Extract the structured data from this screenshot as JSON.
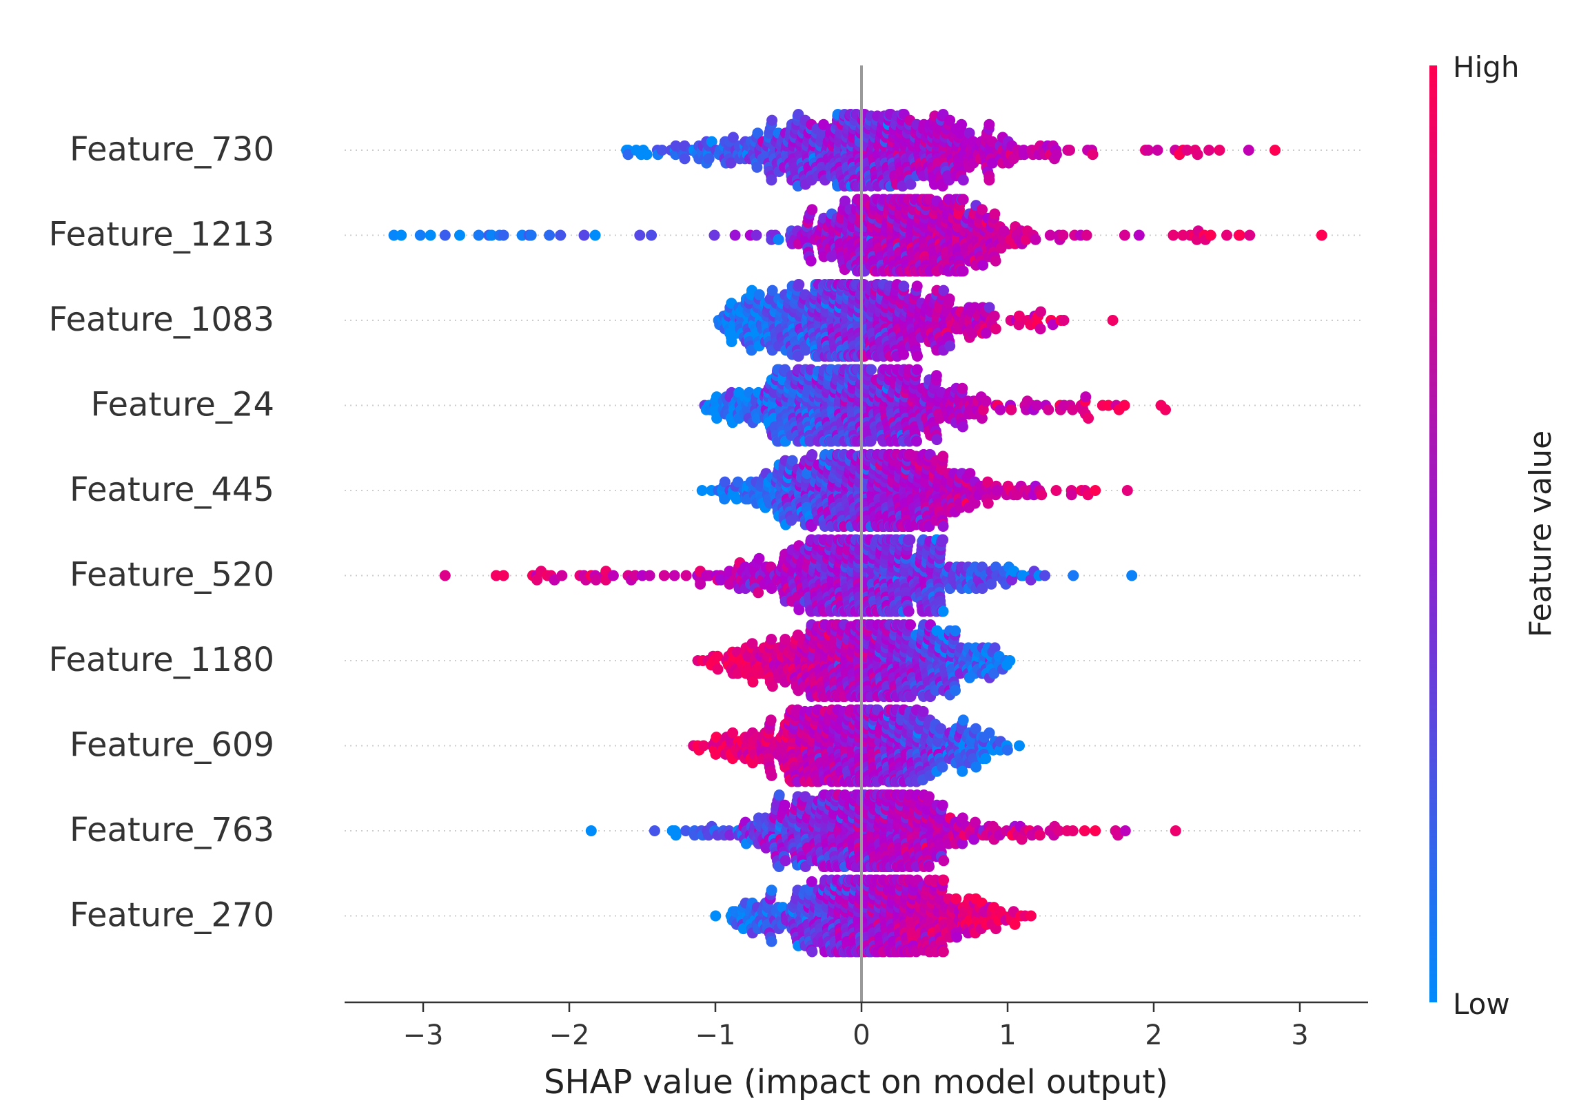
{
  "chart_data": {
    "type": "scatter",
    "subtype": "shap-beeswarm",
    "xlabel": "SHAP value (impact on model output)",
    "xlim": [
      -3.55,
      3.45
    ],
    "xticks": [
      -3,
      -2,
      -1,
      0,
      1,
      2,
      3
    ],
    "xtick_labels": [
      "−3",
      "−2",
      "−1",
      "0",
      "1",
      "2",
      "3"
    ],
    "colorbar": {
      "label": "Feature value",
      "high_label": "High",
      "low_label": "Low",
      "low_color": "#008bfb",
      "high_color": "#ff0052"
    },
    "features": [
      {
        "name": "Feature_730",
        "min": -1.8,
        "max": 2.85,
        "core_low": -0.9,
        "core_high": 0.65,
        "center": 0.05,
        "spread": 0.55,
        "direction": 1,
        "outliers": [
          2.2,
          2.3,
          2.45,
          2.65,
          2.83
        ]
      },
      {
        "name": "Feature_1213",
        "min": -3.2,
        "max": 3.15,
        "core_low": -0.3,
        "core_high": 0.8,
        "center": 0.3,
        "spread": 0.35,
        "direction": 1,
        "outliers": [
          -3.2,
          -3.15,
          -3.02,
          -2.95,
          -2.85,
          -2.75,
          -2.62,
          -2.55,
          -2.45,
          1.5,
          1.9,
          2.2,
          2.25,
          2.5,
          3.15
        ]
      },
      {
        "name": "Feature_1083",
        "min": -1.0,
        "max": 1.7,
        "core_low": -0.6,
        "core_high": 0.7,
        "center": -0.1,
        "spread": 0.45,
        "direction": 1,
        "outliers": [
          1.72
        ]
      },
      {
        "name": "Feature_24",
        "min": -1.1,
        "max": 2.1,
        "core_low": -0.6,
        "core_high": 0.6,
        "center": -0.1,
        "spread": 0.45,
        "direction": 1,
        "outliers": [
          1.65,
          1.8,
          2.05,
          2.08
        ]
      },
      {
        "name": "Feature_445",
        "min": -1.1,
        "max": 1.8,
        "core_low": -0.5,
        "core_high": 0.6,
        "center": 0.05,
        "spread": 0.42,
        "direction": 1,
        "outliers": [
          1.55,
          1.6,
          1.82
        ]
      },
      {
        "name": "Feature_520",
        "min": -2.85,
        "max": 1.85,
        "core_low": -0.5,
        "core_high": 0.5,
        "center": 0.0,
        "spread": 0.4,
        "direction": -1,
        "outliers": [
          -2.85,
          -2.5,
          -2.45,
          -2.25,
          -2.15,
          -1.9,
          -1.85,
          -1.75,
          -1.55,
          -1.5,
          -1.45,
          -1.35,
          -1.28,
          -1.2,
          1.85
        ]
      },
      {
        "name": "Feature_1180",
        "min": -1.1,
        "max": 1.1,
        "core_low": -0.6,
        "core_high": 0.6,
        "center": 0.0,
        "spread": 0.42,
        "direction": -1,
        "outliers": [
          -1.12,
          -1.05
        ]
      },
      {
        "name": "Feature_609",
        "min": -1.15,
        "max": 1.08,
        "core_low": -0.6,
        "core_high": 0.6,
        "center": -0.05,
        "spread": 0.42,
        "direction": -1,
        "outliers": [
          -1.15,
          1.08
        ]
      },
      {
        "name": "Feature_763",
        "min": -1.85,
        "max": 2.15,
        "core_low": -0.5,
        "core_high": 0.7,
        "center": 0.0,
        "spread": 0.4,
        "direction": 1,
        "outliers": [
          -1.85,
          1.35,
          1.6,
          2.15
        ]
      },
      {
        "name": "Feature_270",
        "min": -1.0,
        "max": 1.15,
        "core_low": -0.5,
        "core_high": 0.6,
        "center": 0.05,
        "spread": 0.38,
        "direction": 1,
        "outliers": [
          1.05,
          1.12,
          1.16
        ]
      }
    ]
  }
}
